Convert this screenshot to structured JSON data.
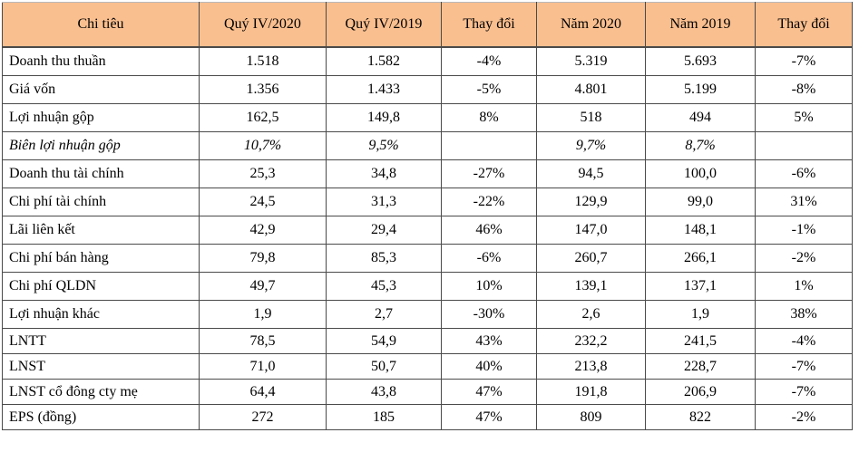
{
  "colors": {
    "header_bg": "#FABF8F",
    "grid_border": "#4a4a4a",
    "text": "#000000",
    "page_bg": "#FFFFFF"
  },
  "table": {
    "columns": [
      {
        "label": "Chi tiêu"
      },
      {
        "label": "Quý IV/2020"
      },
      {
        "label": "Quý IV/2019"
      },
      {
        "label": "Thay đổi"
      },
      {
        "label": "Năm 2020"
      },
      {
        "label": "Năm 2019"
      },
      {
        "label": "Thay đổi"
      }
    ],
    "rows": [
      {
        "label": "Doanh thu thuần",
        "values": [
          "1.518",
          "1.582",
          "-4%",
          "5.319",
          "5.693",
          "-7%"
        ],
        "italic": false
      },
      {
        "label": "Giá vốn",
        "values": [
          "1.356",
          "1.433",
          "-5%",
          "4.801",
          "5.199",
          "-8%"
        ],
        "italic": false
      },
      {
        "label": "Lợi nhuận gộp",
        "values": [
          "162,5",
          "149,8",
          "8%",
          "518",
          "494",
          "5%"
        ],
        "italic": false
      },
      {
        "label": "Biên lợi nhuận gộp",
        "values": [
          "10,7%",
          "9,5%",
          "",
          "9,7%",
          "8,7%",
          ""
        ],
        "italic": true
      },
      {
        "label": "Doanh thu tài chính",
        "values": [
          "25,3",
          "34,8",
          "-27%",
          "94,5",
          "100,0",
          "-6%"
        ],
        "italic": false
      },
      {
        "label": "Chi phí tài chính",
        "values": [
          "24,5",
          "31,3",
          "-22%",
          "129,9",
          "99,0",
          "31%"
        ],
        "italic": false
      },
      {
        "label": "Lãi liên kết",
        "values": [
          "42,9",
          "29,4",
          "46%",
          "147,0",
          "148,1",
          "-1%"
        ],
        "italic": false
      },
      {
        "label": "Chi phí bán hàng",
        "values": [
          "79,8",
          "85,3",
          "-6%",
          "260,7",
          "266,1",
          "-2%"
        ],
        "italic": false
      },
      {
        "label": "Chi phí QLDN",
        "values": [
          "49,7",
          "45,3",
          "10%",
          "139,1",
          "137,1",
          "1%"
        ],
        "italic": false
      },
      {
        "label": "Lợi nhuận khác",
        "values": [
          "1,9",
          "2,7",
          "-30%",
          "2,6",
          "1,9",
          "38%"
        ],
        "italic": false
      },
      {
        "label": "LNTT",
        "values": [
          "78,5",
          "54,9",
          "43%",
          "232,2",
          "241,5",
          "-4%"
        ],
        "italic": false
      },
      {
        "label": "LNST",
        "values": [
          "71,0",
          "50,7",
          "40%",
          "213,8",
          "228,7",
          "-7%"
        ],
        "italic": false
      },
      {
        "label": "LNST cổ đông cty mẹ",
        "values": [
          "64,4",
          "43,8",
          "47%",
          "191,8",
          "206,9",
          "-7%"
        ],
        "italic": false
      },
      {
        "label": "EPS (đồng)",
        "values": [
          "272",
          "185",
          "47%",
          "809",
          "822",
          "-2%"
        ],
        "italic": false
      }
    ]
  }
}
